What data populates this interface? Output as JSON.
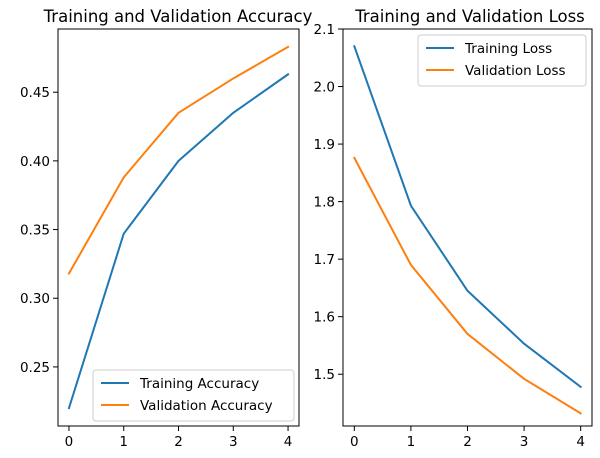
{
  "chart_data": [
    {
      "type": "line",
      "title": "Training and Validation Accuracy",
      "xlabel": "",
      "ylabel": "",
      "x": [
        0,
        1,
        2,
        3,
        4
      ],
      "xticks": [
        "0",
        "1",
        "2",
        "3",
        "4"
      ],
      "xlim": [
        -0.2,
        4.2
      ],
      "ylim": [
        0.207,
        0.496
      ],
      "yticks": [
        "0.25",
        "0.30",
        "0.35",
        "0.40",
        "0.45"
      ],
      "legend_position": "lower-right",
      "series": [
        {
          "name": "Training Accuracy",
          "color": "#1f77b4",
          "values": [
            0.22,
            0.347,
            0.4,
            0.435,
            0.463
          ]
        },
        {
          "name": "Validation Accuracy",
          "color": "#ff7f0e",
          "values": [
            0.318,
            0.388,
            0.435,
            0.46,
            0.483
          ]
        }
      ]
    },
    {
      "type": "line",
      "title": "Training and Validation Loss",
      "xlabel": "",
      "ylabel": "",
      "x": [
        0,
        1,
        2,
        3,
        4
      ],
      "xticks": [
        "0",
        "1",
        "2",
        "3",
        "4"
      ],
      "xlim": [
        -0.2,
        4.2
      ],
      "ylim": [
        1.41,
        2.1
      ],
      "yticks": [
        "1.5",
        "1.6",
        "1.7",
        "1.8",
        "1.9",
        "2.0",
        "2.1"
      ],
      "legend_position": "upper-right",
      "series": [
        {
          "name": "Training Loss",
          "color": "#1f77b4",
          "values": [
            2.07,
            1.793,
            1.645,
            1.553,
            1.478
          ]
        },
        {
          "name": "Validation Loss",
          "color": "#ff7f0e",
          "values": [
            1.876,
            1.69,
            1.57,
            1.492,
            1.432
          ]
        }
      ]
    }
  ]
}
